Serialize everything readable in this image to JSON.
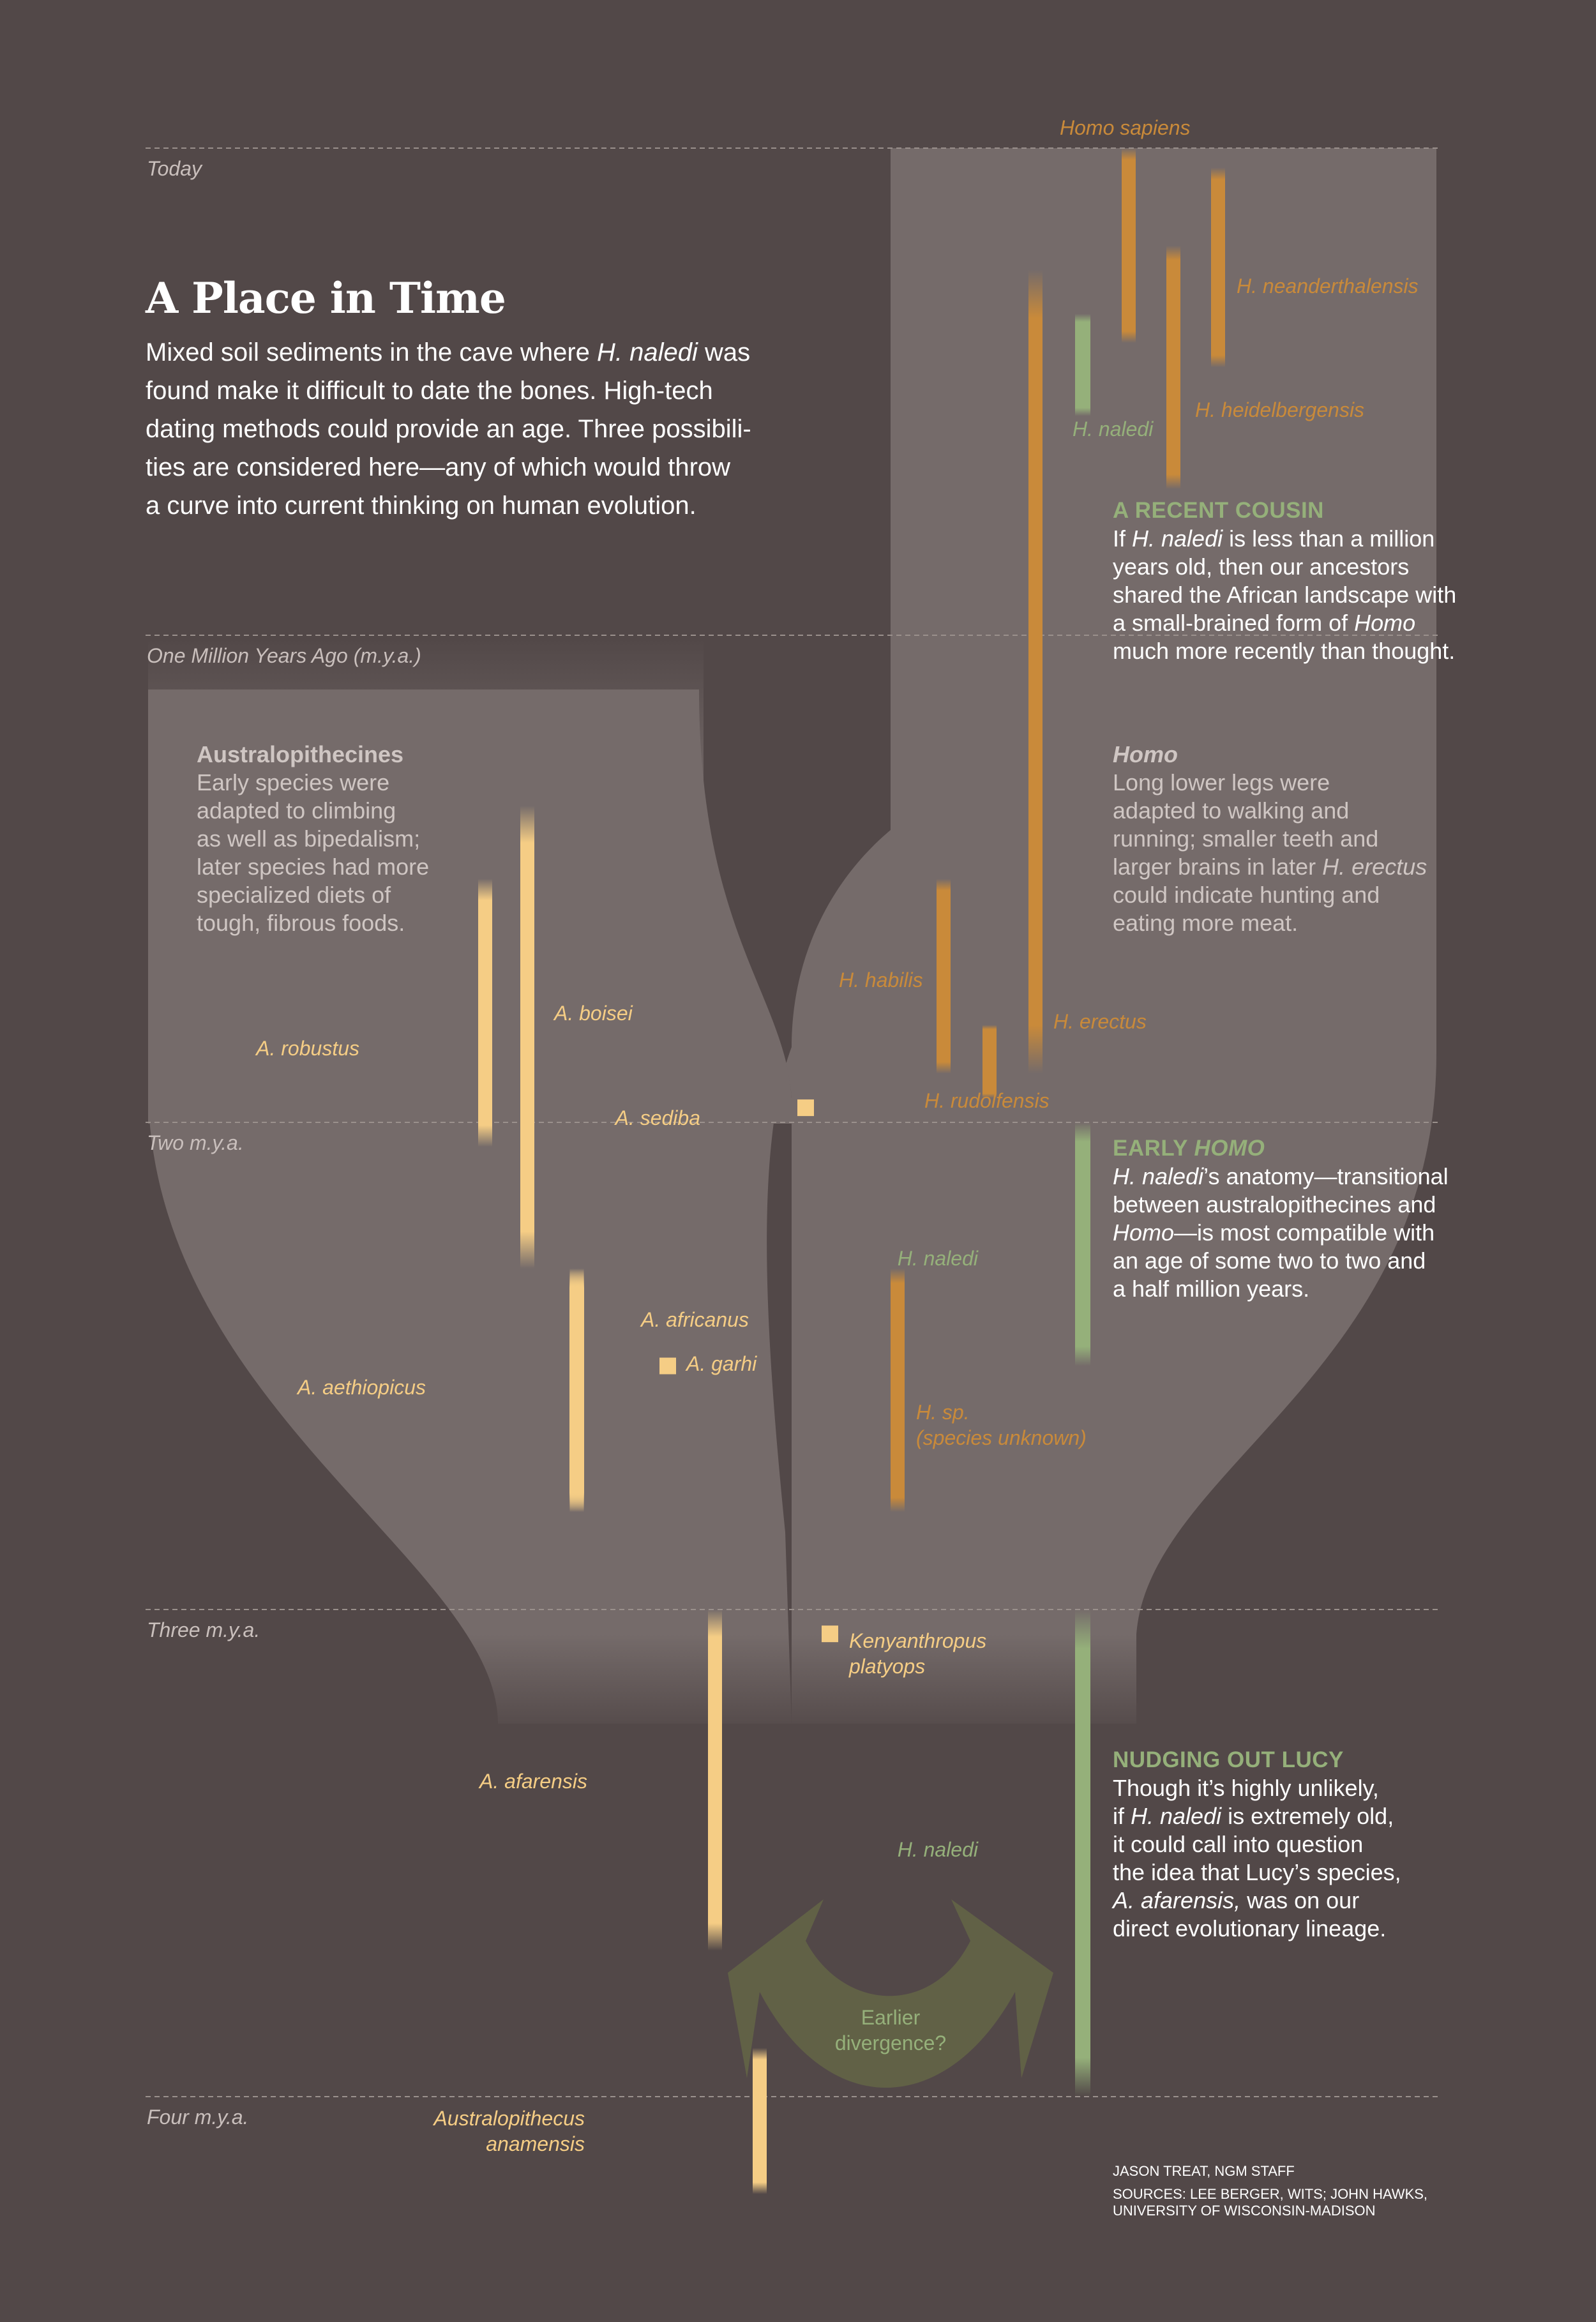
{
  "title": "A Place in Time",
  "intro_lines": [
    [
      "Mixed soil sediments in the cave where ",
      "H. naledi",
      " was"
    ],
    [
      "found make it difficult to date the bones. High-tech"
    ],
    [
      "dating methods could provide an age. Three possibili-"
    ],
    [
      "ties are considered here—any of which would throw"
    ],
    [
      "a curve into current thinking on human evolution."
    ]
  ],
  "time_scale": {
    "labels": [
      "Today",
      "One Million Years Ago (m.y.a.)",
      "Two m.y.a.",
      "Three m.y.a.",
      "Four m.y.a."
    ],
    "values_mya": [
      0,
      1,
      2,
      3,
      4
    ]
  },
  "colors": {
    "background": "#524848",
    "tree": "#756b6a",
    "australopithecine": "#f5cd85",
    "homo": "#c98a3a",
    "naledi": "#95b07a",
    "divergence_arrow": "#626347",
    "gridline": "#9a908c"
  },
  "species": [
    {
      "name": "Homo sapiens",
      "group": "homo",
      "range_mya": [
        0.0,
        0.4
      ]
    },
    {
      "name": "H. neanderthalensis",
      "group": "homo",
      "range_mya": [
        0.04,
        0.45
      ]
    },
    {
      "name": "H. heidelbergensis",
      "group": "homo",
      "range_mya": [
        0.2,
        0.7
      ]
    },
    {
      "name": "H. erectus",
      "group": "homo",
      "range_mya": [
        0.25,
        1.9
      ]
    },
    {
      "name": "H. habilis",
      "group": "homo",
      "range_mya": [
        1.5,
        1.9
      ]
    },
    {
      "name": "H. rudolfensis",
      "group": "homo",
      "range_mya": [
        1.8,
        1.95
      ]
    },
    {
      "name": "H. sp.",
      "sub": "(species unknown)",
      "group": "homo",
      "range_mya": [
        2.3,
        2.8
      ]
    },
    {
      "name": "A. robustus",
      "group": "aus",
      "range_mya": [
        1.5,
        2.05
      ]
    },
    {
      "name": "A. boisei",
      "group": "aus",
      "range_mya": [
        1.35,
        2.3
      ]
    },
    {
      "name": "A. sediba",
      "group": "aus",
      "point_mya": 1.97
    },
    {
      "name": "A. africanus",
      "group": "aus",
      "range_mya": [
        2.3,
        2.8
      ]
    },
    {
      "name": "A. aethiopicus",
      "group": "aus",
      "range_mya": [
        2.3,
        2.8
      ]
    },
    {
      "name": "A. garhi",
      "group": "aus",
      "point_mya": 2.5
    },
    {
      "name": "Kenyanthropus",
      "sub": "platyops",
      "group": "aus",
      "point_mya": 3.05
    },
    {
      "name": "A. afarensis",
      "group": "aus",
      "range_mya": [
        3.0,
        3.7
      ]
    },
    {
      "name": "Australopithecus",
      "sub": "anamensis",
      "group": "aus",
      "range_mya": [
        3.9,
        4.2
      ]
    },
    {
      "name": "H. naledi",
      "group": "naledi",
      "scenario": "recent",
      "range_mya": [
        0.34,
        0.55
      ]
    },
    {
      "name": "H. naledi",
      "group": "naledi",
      "scenario": "early",
      "range_mya": [
        2.0,
        2.5
      ]
    },
    {
      "name": "H. naledi",
      "group": "naledi",
      "scenario": "old",
      "range_mya": [
        3.0,
        4.0
      ]
    }
  ],
  "group_notes": [
    {
      "head": "Australopithecines",
      "lines": [
        [
          {
            "t": "Early species were"
          }
        ],
        [
          {
            "t": "adapted to climbing"
          }
        ],
        [
          {
            "t": "as well as bipedalism;"
          }
        ],
        [
          {
            "t": "later species had more"
          }
        ],
        [
          {
            "t": "specialized diets of"
          }
        ],
        [
          {
            "t": "tough, fibrous foods."
          }
        ]
      ]
    },
    {
      "head": "Homo",
      "lines": [
        [
          {
            "t": "Long lower legs were"
          }
        ],
        [
          {
            "t": "adapted to walking and"
          }
        ],
        [
          {
            "t": "running; smaller teeth and"
          }
        ],
        [
          {
            "t": "larger brains in later "
          },
          {
            "t": "H. erectus",
            "i": true
          }
        ],
        [
          {
            "t": "could indicate hunting and"
          }
        ],
        [
          {
            "t": "eating more meat."
          }
        ]
      ]
    }
  ],
  "scenarios": [
    {
      "head": [
        {
          "t": "A RECENT COUSIN"
        }
      ],
      "lines": [
        [
          {
            "t": "If "
          },
          {
            "t": "H. naledi",
            "i": true
          },
          {
            "t": " is less than a million"
          }
        ],
        [
          {
            "t": "years old, then our ancestors"
          }
        ],
        [
          {
            "t": "shared the African landscape with"
          }
        ],
        [
          {
            "t": "a small-brained form of "
          },
          {
            "t": "Homo",
            "i": true
          }
        ],
        [
          {
            "t": "much more recently than thought."
          }
        ]
      ]
    },
    {
      "head": [
        {
          "t": "EARLY "
        },
        {
          "t": "HOMO",
          "i": true
        }
      ],
      "lines": [
        [
          {
            "t": "H. naledi",
            "i": true
          },
          {
            "t": "’s anatomy—transitional"
          }
        ],
        [
          {
            "t": "between australopithecines and"
          }
        ],
        [
          {
            "t": "Homo",
            "i": true
          },
          {
            "t": "—is most compatible with"
          }
        ],
        [
          {
            "t": "an age of some two to two and"
          }
        ],
        [
          {
            "t": "a half million years."
          }
        ]
      ]
    },
    {
      "head": [
        {
          "t": "NUDGING OUT LUCY"
        }
      ],
      "lines": [
        [
          {
            "t": "Though it’s highly unlikely,"
          }
        ],
        [
          {
            "t": "if "
          },
          {
            "t": "H. naledi",
            "i": true
          },
          {
            "t": " is extremely old,"
          }
        ],
        [
          {
            "t": "it could call into question"
          }
        ],
        [
          {
            "t": "the idea that Lucy’s species,"
          }
        ],
        [
          {
            "t": "A. afarensis,",
            "i": true
          },
          {
            "t": " was on our"
          }
        ],
        [
          {
            "t": "direct evolutionary lineage."
          }
        ]
      ]
    }
  ],
  "divergence_label": [
    "Earlier",
    "divergence?"
  ],
  "credit": {
    "author": "JASON TREAT, NGM STAFF",
    "sources": [
      "SOURCES: LEE BERGER, WITS; JOHN HAWKS,",
      "UNIVERSITY OF WISCONSIN-MADISON"
    ]
  }
}
